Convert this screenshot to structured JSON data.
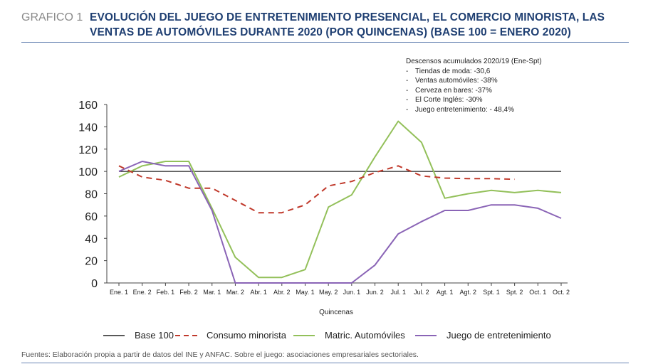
{
  "header": {
    "label": "GRAFICO 1",
    "title": "EVOLUCIÓN DEL JUEGO DE ENTRETENIMIENTO PRESENCIAL, EL COMERCIO MINORISTA, LAS VENTAS DE AUTOMÓVILES DURANTE 2020 (POR QUINCENAS) (BASE 100 = ENERO 2020)"
  },
  "note": {
    "heading": "Descensos acumulados 2020/19 (Ene-Spt)",
    "items": [
      "Tiendas de moda: -30,6",
      "Ventas automóviles: -38%",
      "Cerveza en bares: -37%",
      "El Corte Inglés: -30%",
      "Juego entretenimiento: - 48,4%"
    ]
  },
  "source": "Fuentes: Elaboración propia a partir de datos del INE y ANFAC. Sobre el juego: asociaciones empresariales sectoriales.",
  "chart_data": {
    "type": "line",
    "title": "EVOLUCIÓN DEL JUEGO DE ENTRETENIMIENTO PRESENCIAL, EL COMERCIO MINORISTA, LAS VENTAS DE AUTOMÓVILES DURANTE 2020 (POR QUINCENAS) (BASE 100 = ENERO 2020)",
    "xlabel": "Quincenas",
    "ylabel": "",
    "ylim": [
      0,
      160
    ],
    "yticks": [
      0,
      20,
      40,
      60,
      80,
      100,
      120,
      140,
      160
    ],
    "grid": false,
    "legend_position": "bottom",
    "categories": [
      "Ene. 1",
      "Ene. 2",
      "Feb. 1",
      "Feb. 2",
      "Mar. 1",
      "Mar. 2",
      "Abr. 1",
      "Abr. 2",
      "May. 1",
      "May. 2",
      "Jun. 1",
      "Jun. 2",
      "Jul. 1",
      "Jul. 2",
      "Agt. 1",
      "Agt. 2",
      "Spt. 1",
      "Spt. 2",
      "Oct. 1",
      "Oct. 2"
    ],
    "series": [
      {
        "name": "Base 100",
        "color": "#222222",
        "dash": "solid",
        "values": [
          100,
          100,
          100,
          100,
          100,
          100,
          100,
          100,
          100,
          100,
          100,
          100,
          100,
          100,
          100,
          100,
          100,
          100,
          100,
          100
        ]
      },
      {
        "name": "Consumo minorista",
        "color": "#c0392b",
        "dash": "dashed",
        "values": [
          105,
          95,
          92,
          85,
          85,
          74,
          63,
          63,
          70,
          87,
          91,
          99,
          105,
          96,
          94,
          93.5,
          93.5,
          93,
          null,
          null
        ]
      },
      {
        "name": "Matric. Automóviles",
        "color": "#93c05a",
        "dash": "solid",
        "values": [
          95,
          105,
          109,
          109,
          67,
          23,
          5,
          5,
          12,
          68,
          79,
          113,
          145,
          126,
          76,
          80,
          83,
          81,
          83,
          81
        ]
      },
      {
        "name": "Juego de entretenimiento",
        "color": "#8a64b6",
        "dash": "solid",
        "values": [
          100,
          109,
          105,
          105,
          65,
          0,
          0,
          0,
          0,
          0,
          0,
          16,
          44,
          55,
          65,
          65,
          70,
          70,
          67,
          58
        ]
      }
    ]
  }
}
